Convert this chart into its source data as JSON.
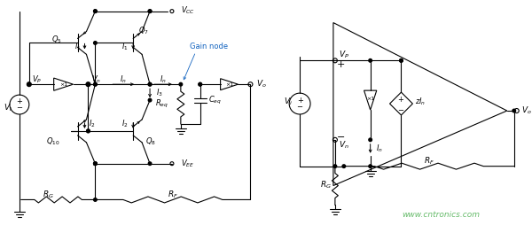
{
  "bg_color": "#ffffff",
  "line_color": "#000000",
  "watermark_color": "#66bb6a",
  "watermark_text": "www.cntronics.com",
  "fig_width": 6.0,
  "fig_height": 2.54,
  "dpi": 100
}
